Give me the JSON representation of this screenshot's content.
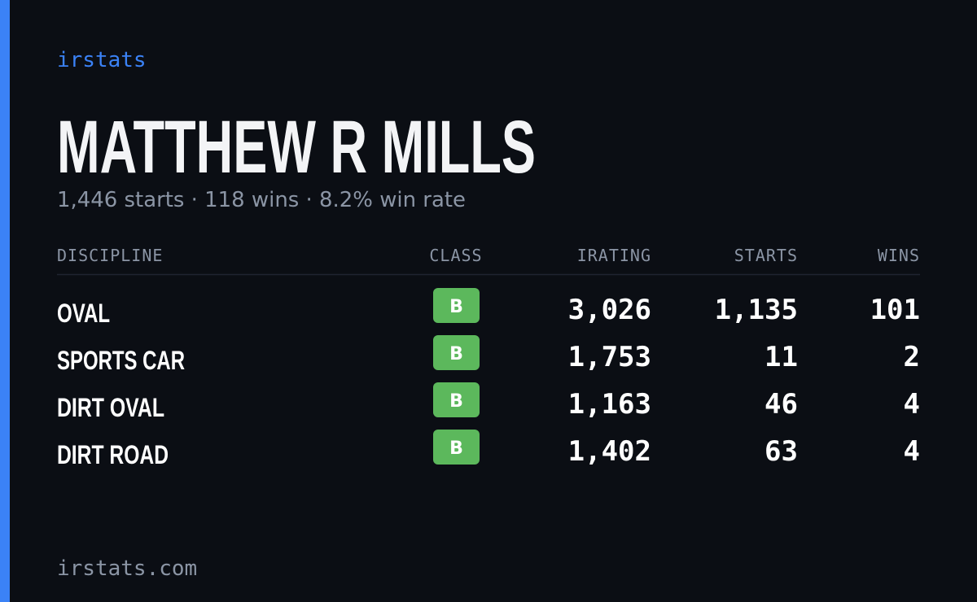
{
  "brand": "irstats",
  "driver": {
    "name": "MATTHEW R MILLS",
    "summary": "1,446 starts · 118 wins · 8.2% win rate"
  },
  "table": {
    "headers": [
      "DISCIPLINE",
      "CLASS",
      "IRATING",
      "STARTS",
      "WINS"
    ],
    "rows": [
      [
        "OVAL",
        "B",
        "3,026",
        "1,135",
        "101"
      ],
      [
        "SPORTS CAR",
        "B",
        "1,753",
        "11",
        "2"
      ],
      [
        "DIRT OVAL",
        "B",
        "1,163",
        "46",
        "4"
      ],
      [
        "DIRT ROAD",
        "B",
        "1,402",
        "63",
        "4"
      ]
    ]
  },
  "footer": "irstats.com"
}
